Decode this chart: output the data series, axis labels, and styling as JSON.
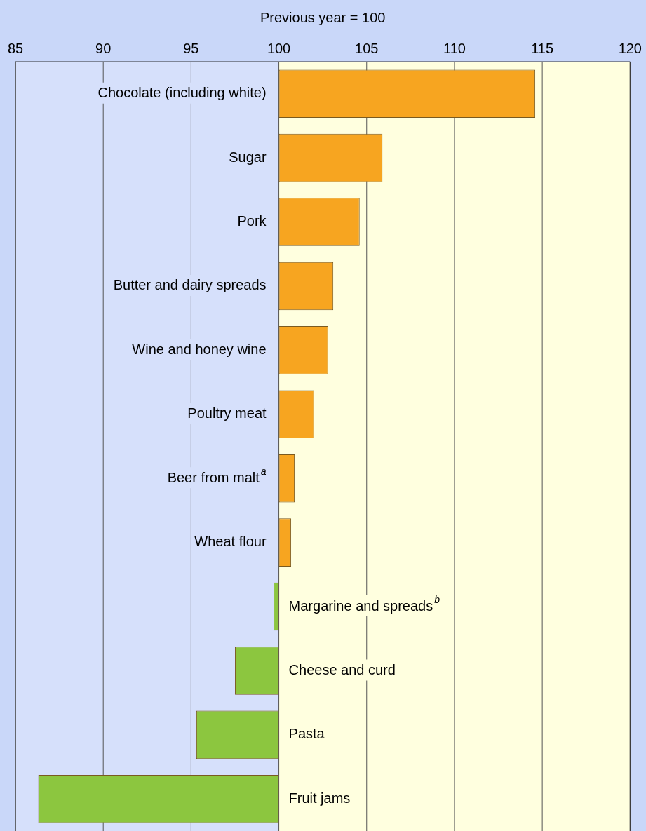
{
  "chart_data": {
    "type": "bar",
    "orientation": "horizontal",
    "xlabel": "Previous year = 100",
    "categories": [
      "Chocolate (including white)",
      "Sugar",
      "Pork",
      "Butter and dairy spreads",
      "Wine and honey wine",
      "Poultry meat",
      "Beer from malt$^{a}$",
      "Wheat flour",
      "Margarine and spreads$^{b}$",
      "Cheese and curd",
      "Pasta",
      "Fruit jams"
    ],
    "base": [
      100,
      100,
      100,
      100,
      100,
      100,
      100,
      100,
      100,
      100,
      100,
      100
    ],
    "values": [
      14.6,
      5.9,
      4.6,
      3.1,
      2.8,
      2.0,
      0.9,
      0.7,
      -0.3,
      -2.5,
      -4.7,
      -13.7
    ],
    "colors": [
      "#f7a520",
      "#f7a520",
      "#f7a520",
      "#f7a520",
      "#f7a520",
      "#f7a520",
      "#f7a520",
      "#f7a520",
      "#8cc63f",
      "#8cc63f",
      "#8cc63f",
      "#8cc63f"
    ],
    "xlim": [
      85,
      120
    ],
    "xticks": [
      85,
      90,
      95,
      100,
      105,
      110,
      115,
      120
    ],
    "grid": "x",
    "bands": [
      {
        "axis": "x",
        "from": 85,
        "to": 100,
        "color": "#d6e0fb"
      },
      {
        "axis": "x",
        "from": 100,
        "to": 120,
        "color": "#ffffdf"
      }
    ]
  }
}
